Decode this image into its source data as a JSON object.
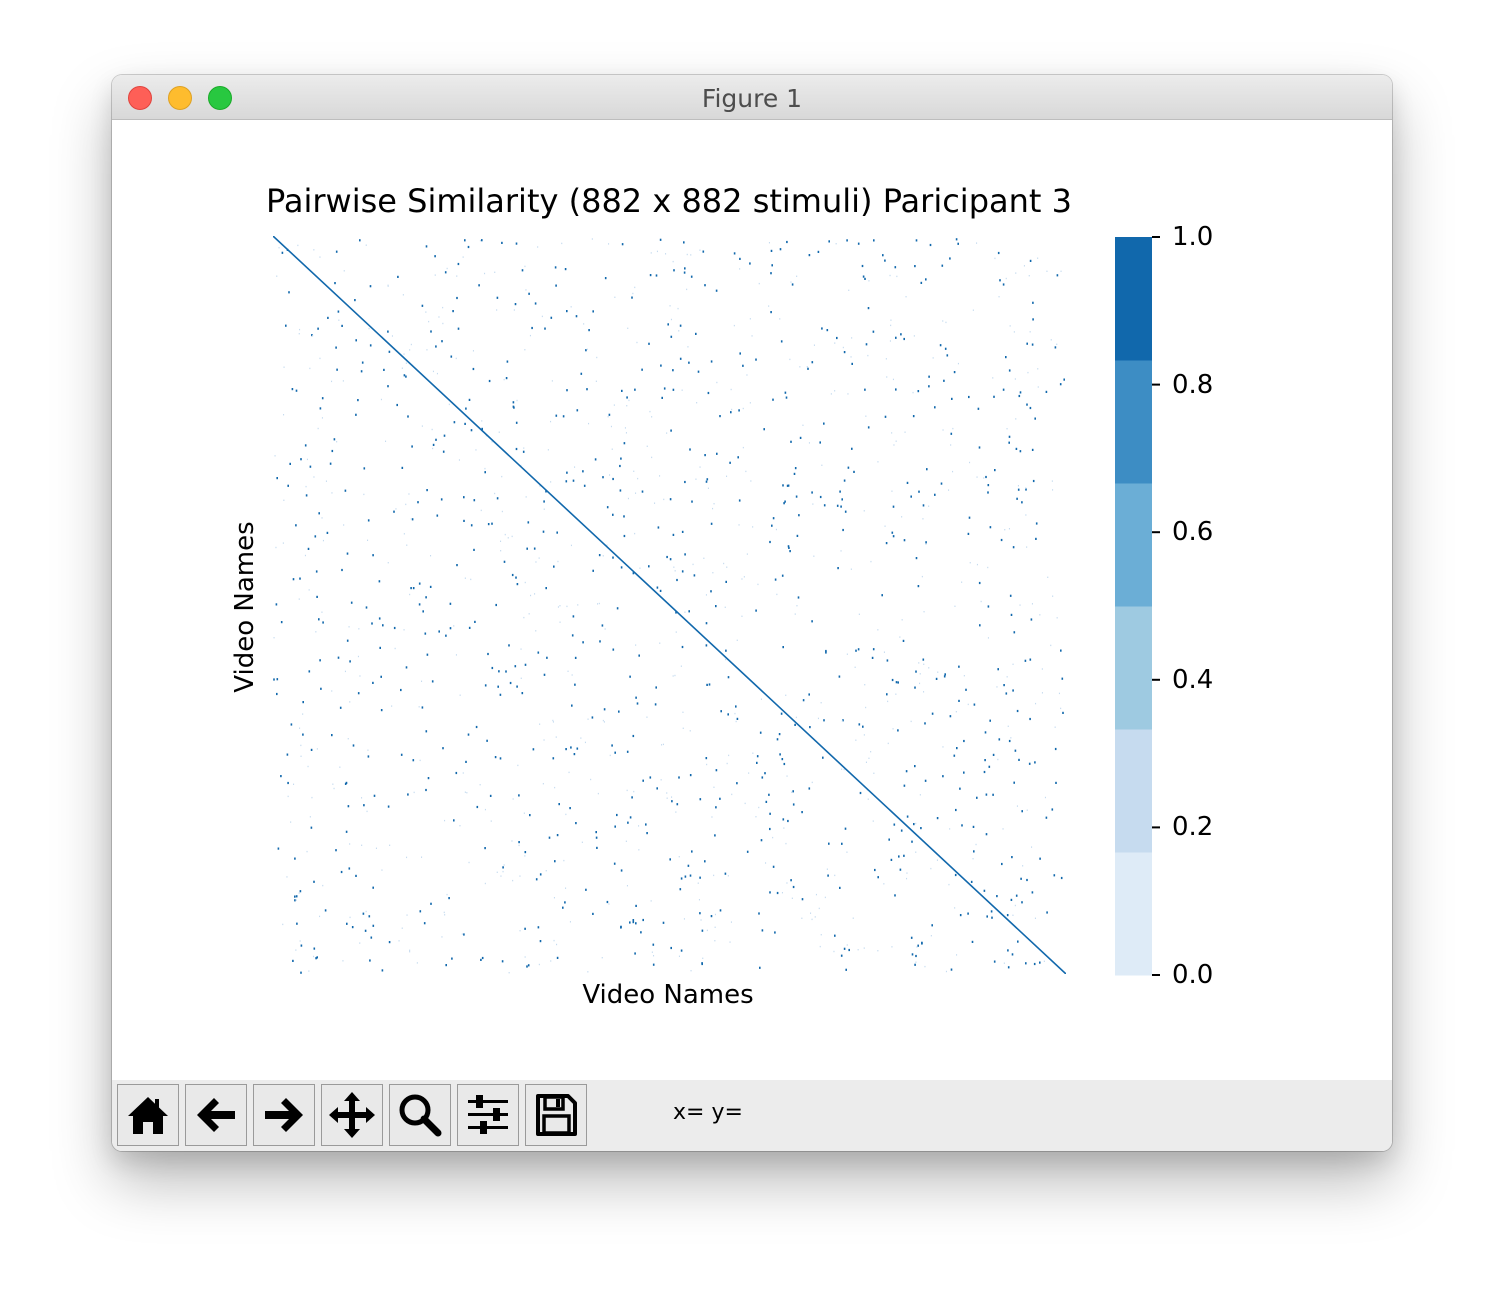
{
  "window": {
    "title": "Figure 1",
    "controls": [
      "close",
      "minimize",
      "maximize"
    ]
  },
  "toolbar": {
    "buttons": [
      {
        "name": "home",
        "icon": "home-icon"
      },
      {
        "name": "back",
        "icon": "arrow-left-icon"
      },
      {
        "name": "forward",
        "icon": "arrow-right-icon"
      },
      {
        "name": "pan",
        "icon": "move-icon"
      },
      {
        "name": "zoom",
        "icon": "magnifier-icon"
      },
      {
        "name": "configure-subplots",
        "icon": "sliders-icon"
      },
      {
        "name": "save",
        "icon": "floppy-disk-icon"
      }
    ],
    "coords_text": "x= y="
  },
  "chart_data": {
    "type": "heatmap",
    "title": "Pairwise Similarity (882 x 882 stimuli) Paricipant 3",
    "xlabel": "Video Names",
    "ylabel": "Video Names",
    "n_stimuli": 882,
    "diagonal_value": 1.0,
    "offdiagonal_description": "mostly 0.0 with sparse scattered cells at ~1.0",
    "colorbar": {
      "range": [
        0.0,
        1.0
      ],
      "ticks": [
        0.0,
        0.2,
        0.4,
        0.6,
        0.8,
        1.0
      ],
      "tick_labels": [
        "0.0",
        "0.2",
        "0.4",
        "0.6",
        "0.8",
        "1.0"
      ],
      "bins": [
        {
          "from": 0.0,
          "to": 0.1667,
          "color": "#deebf7"
        },
        {
          "from": 0.1667,
          "to": 0.3333,
          "color": "#c6dbef"
        },
        {
          "from": 0.3333,
          "to": 0.5,
          "color": "#9ecae1"
        },
        {
          "from": 0.5,
          "to": 0.6667,
          "color": "#6baed6"
        },
        {
          "from": 0.6667,
          "to": 0.8333,
          "color": "#3d8dc4"
        },
        {
          "from": 0.8333,
          "to": 1.0,
          "color": "#1168ac"
        }
      ]
    },
    "sparse_cell_count": 1500,
    "colors": {
      "high": "#1168ac",
      "low": "#deebf7",
      "background": "#ffffff"
    }
  }
}
